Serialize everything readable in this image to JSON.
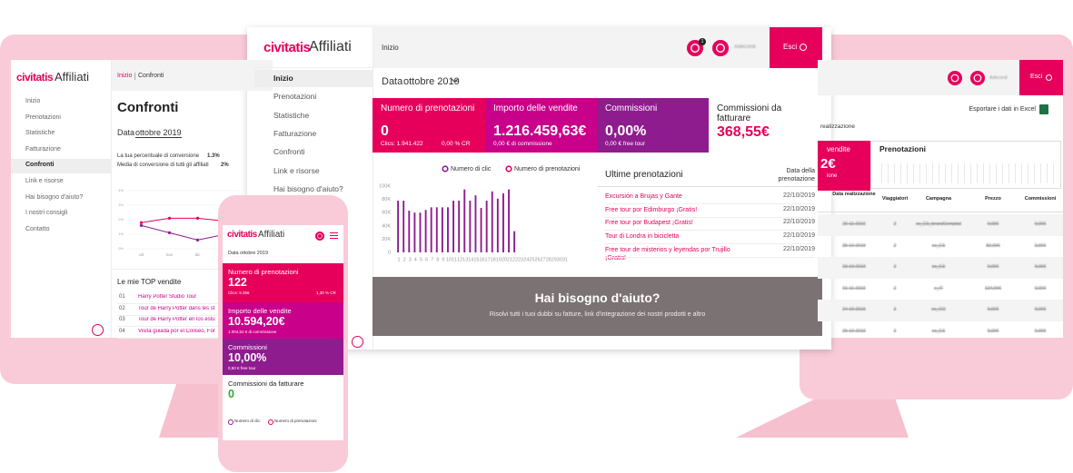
{
  "left_screen": {
    "logo": "civitatis",
    "app": "Affiliati",
    "nav": [
      "Inizio",
      "Prenotazioni",
      "Statistiche",
      "Fatturazione",
      "Confronti",
      "Link e risorse",
      "Hai bisogno d'aiuto?",
      "I nostri consigli",
      "Contatto"
    ],
    "breadcrumb": [
      "Inizio",
      "Confronti"
    ],
    "title": "Confronti",
    "date_label": "Data",
    "date_value": "ottobre 2019",
    "conv_text": "La tua percentuale di conversione",
    "conv_value": "1.3%",
    "avg_text": "Media di conversione di tutti gli affiliati",
    "avg_value": "2%",
    "mini_chart": {
      "type": "line",
      "categories": [
        "ott",
        "nov",
        "dic",
        null
      ],
      "ylim": [
        0,
        4
      ],
      "yticks": [
        {
          "value": 0,
          "label": "0%"
        },
        {
          "value": 1,
          "label": "1%"
        },
        {
          "value": 2,
          "label": "2%"
        },
        {
          "value": 3,
          "label": "3%"
        },
        {
          "value": 4,
          "label": "4%"
        }
      ],
      "grid": true,
      "series": [
        {
          "color": "#e6005c",
          "values": [
            1.8,
            2.1,
            2.1,
            1.9
          ]
        },
        {
          "color": "#8e1c8e",
          "values": [
            1.6,
            1.1,
            0.6,
            1.0
          ]
        }
      ]
    },
    "top_title": "Le mie TOP vendite",
    "top": [
      [
        "01",
        "Harry Potter Studio Tour"
      ],
      [
        "02",
        "Tour de Harry Potter dans les st"
      ],
      [
        "03",
        "Tour de Harry Potter en los estu"
      ],
      [
        "04",
        "Visita guiada por el Coliseo, For"
      ]
    ]
  },
  "center": {
    "logo": "civitatis",
    "app": "Affiliati",
    "nav": [
      "Inizio",
      "Prenotazioni",
      "Statistiche",
      "Fatturazione",
      "Confronti",
      "Link e risorse",
      "Hai bisogno d'aiuto?"
    ],
    "topbar": "Inizio",
    "notifications": "1",
    "user": "Adecordi",
    "exit": "Esci",
    "date_label": "Data",
    "date_value": "ottobre 2019",
    "cards": [
      {
        "label": "Numero di prenotazioni",
        "value": "0",
        "sub": "Clics: 1.941.422",
        "sub2": "0,00 % CR",
        "color": "#e6005c"
      },
      {
        "label": "Importo delle vendite",
        "value": "1.216.459,63€",
        "sub": "0,00 € di commissione",
        "color": "#c9008a"
      },
      {
        "label": "Commissioni",
        "value": "0,00%",
        "sub": "0,00 € free tour",
        "color": "#8e1c8e"
      },
      {
        "label": "Commissioni da fatturare",
        "value": "368,55€",
        "color": "#ffffff"
      }
    ],
    "recent_title": "Ultime prenotazioni",
    "recent_col": "Data della prenotazione",
    "recent": [
      [
        "Excursión a Brujas y Gante",
        "22/10/2019"
      ],
      [
        "Free tour por Edimburgo ¡Gratis!",
        "22/10/2019"
      ],
      [
        "Free tour por Budapest ¡Gratis!",
        "22/10/2019"
      ],
      [
        "Tour di Londra in bicicletta",
        "22/10/2019"
      ],
      [
        "Free tour de misterios y leyendas por Trujillo ¡Gratis!",
        "22/10/2019"
      ]
    ],
    "help_title": "Hai bisogno d'aiuto?",
    "help_text": "Risolvi tutti i tuoi dubbi su fatture, link d'integrazione dei nostri prodotti e altro"
  },
  "chart_data": {
    "type": "bar",
    "categories": [
      1,
      2,
      3,
      4,
      5,
      6,
      7,
      8,
      9,
      10,
      11,
      12,
      13,
      14,
      15,
      16,
      17,
      18,
      19,
      20,
      21,
      22,
      23,
      24,
      25,
      26,
      27,
      28,
      29,
      30,
      31
    ],
    "series": [
      {
        "name": "Numero di clic",
        "color": "#8e1c8e",
        "values": [
          78000,
          78000,
          63000,
          60000,
          60000,
          64000,
          68000,
          68000,
          68000,
          68000,
          78000,
          78000,
          95000,
          78000,
          86000,
          67000,
          78000,
          92000,
          81000,
          89000,
          95000,
          32000,
          0,
          0,
          0,
          0,
          0,
          0,
          0,
          0,
          0
        ]
      },
      {
        "name": "Numero di prenotazioni",
        "color": "#e6005c",
        "values": [
          0,
          0,
          0,
          0,
          0,
          0,
          0,
          0,
          0,
          0,
          0,
          0,
          0,
          0,
          0,
          0,
          0,
          0,
          0,
          0,
          0,
          0,
          0,
          0,
          0,
          0,
          0,
          0,
          0,
          0,
          0
        ]
      }
    ],
    "ylim": [
      0,
      100000
    ],
    "yticks": [
      0,
      {
        "value": 20000,
        "label": "20K"
      },
      {
        "value": 40000,
        "label": "40K"
      },
      {
        "value": 60000,
        "label": "60K"
      },
      {
        "value": 80000,
        "label": "80K"
      },
      {
        "value": 100000,
        "label": "100K"
      }
    ],
    "grid": false
  },
  "phone": {
    "logo": "civitatis",
    "app": "Affiliati",
    "date": "Data ottobre 2019",
    "cards": [
      {
        "label": "Numero di prenotazioni",
        "value": "122",
        "sub": "Clics: 9.356",
        "sub2": "1,30 % CR",
        "color": "#e6005c"
      },
      {
        "label": "Importo delle vendite",
        "value": "10.594,20€",
        "sub": "1.004,52 € di commissione",
        "color": "#c9008a"
      },
      {
        "label": "Commissioni",
        "value": "10,00%",
        "sub": "0,50 € free tour",
        "color": "#8e1c8e"
      },
      {
        "label": "Commissioni da fatturare",
        "value": "0",
        "color": "#ffffff"
      }
    ],
    "legend": [
      "Numero di clic",
      "Numero di prenotazioni"
    ]
  },
  "right_screen": {
    "user": "Adecordi",
    "exit": "Esci",
    "export": "Esportare i dati in Excel",
    "crumb": "realizzazione",
    "card_label": "vendite",
    "card_value": "2€",
    "card_sub": "ione",
    "box_title": "Prenotazioni",
    "headers": [
      "Data realizzazione",
      "Viaggiatori",
      "Campagna",
      "Prezzo",
      "Commissioni"
    ],
    "rows": [
      [
        "26-11-2019",
        "2",
        "es_ES_brandCompital",
        "0,00€",
        "0,00€"
      ],
      [
        "25-10-2019",
        "2",
        "es_ES",
        "82,00€",
        "0,00€"
      ],
      [
        "23-10-2019",
        "2",
        "es_ES",
        "0,00€",
        "0,00€"
      ],
      [
        "01-11-2019",
        "2",
        "e_IT",
        "124,00€",
        "0,00€"
      ],
      [
        "24-10-2019",
        "2",
        "es_CO",
        "0,00€",
        "0,00€"
      ],
      [
        "26-10-2019",
        "2",
        "es_ES",
        "0,00€",
        "0,00€"
      ]
    ]
  }
}
